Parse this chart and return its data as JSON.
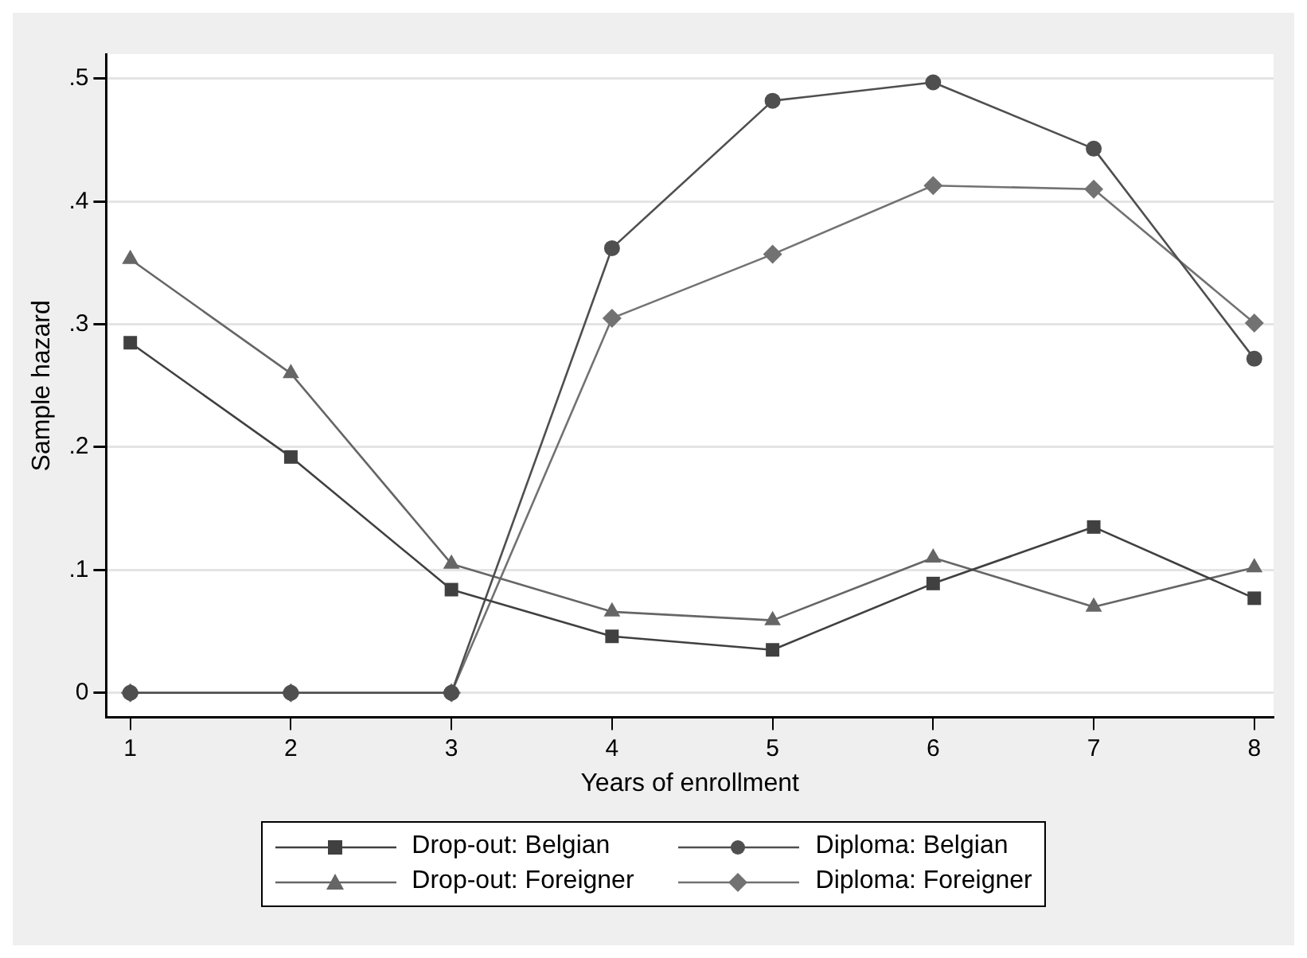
{
  "chart_data": {
    "type": "line",
    "xlabel": "Years of enrollment",
    "ylabel": "Sample hazard",
    "x": [
      1,
      2,
      3,
      4,
      5,
      6,
      7,
      8
    ],
    "xlim": [
      0.85,
      8.12
    ],
    "xticks": [
      1,
      2,
      3,
      4,
      5,
      6,
      7,
      8
    ],
    "ylim": [
      -0.02,
      0.52
    ],
    "yticks": [
      {
        "value": 0,
        "label": "0"
      },
      {
        "value": 0.1,
        "label": ".1"
      },
      {
        "value": 0.2,
        "label": ".2"
      },
      {
        "value": 0.3,
        "label": ".3"
      },
      {
        "value": 0.4,
        "label": ".4"
      },
      {
        "value": 0.5,
        "label": ".5"
      }
    ],
    "grid": "y",
    "legend": "bottom",
    "line_style": "solid",
    "series": [
      {
        "name": "Drop-out: Belgian",
        "color": "#404040",
        "marker": "square",
        "values": [
          0.285,
          0.192,
          0.084,
          0.046,
          0.035,
          0.089,
          0.135,
          0.077
        ]
      },
      {
        "name": "Diploma: Belgian",
        "color": "#4f4f4f",
        "marker": "circle",
        "values": [
          0,
          0,
          0,
          0.362,
          0.482,
          0.497,
          0.443,
          0.272
        ]
      },
      {
        "name": "Drop-out: Foreigner",
        "color": "#666666",
        "marker": "triangle",
        "values": [
          0.353,
          0.26,
          0.105,
          0.066,
          0.059,
          0.11,
          0.07,
          0.102
        ]
      },
      {
        "name": "Diploma: Foreigner",
        "color": "#727272",
        "marker": "diamond",
        "values": [
          0,
          0,
          0,
          0.305,
          0.357,
          0.413,
          0.41,
          0.301
        ]
      }
    ]
  }
}
